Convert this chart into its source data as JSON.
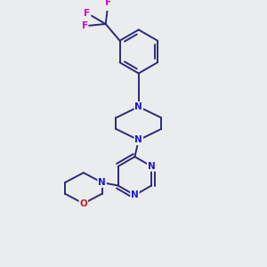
{
  "bg_color": "#eaecee",
  "bond_color": "#2a2a7a",
  "bond_width": 1.4,
  "atom_colors": {
    "N": "#1a1acc",
    "O": "#cc1a1a",
    "F": "#cc00cc",
    "C": "#000000"
  },
  "font_size_atom": 7.5,
  "fig_size": [
    3.0,
    3.0
  ],
  "dpi": 100,
  "xlim": [
    0,
    10
  ],
  "ylim": [
    0,
    10
  ]
}
